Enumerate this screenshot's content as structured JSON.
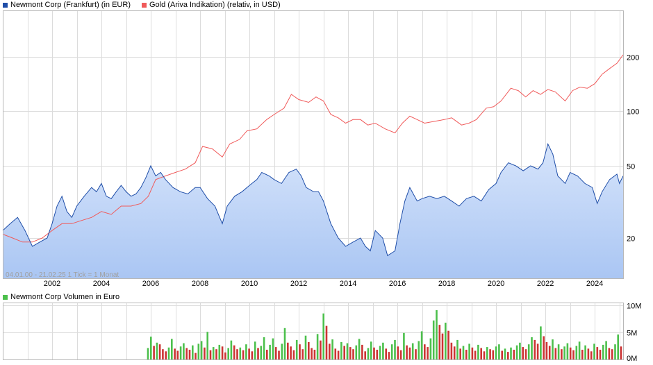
{
  "legend_top": {
    "series1": {
      "label": "Newmont Corp (Frankfurt) (in EUR)",
      "color": "#1f4ea8"
    },
    "series2": {
      "label": "Gold (Ariva Indikation) (relativ, in USD)",
      "color": "#f05a5a"
    }
  },
  "legend_bottom": {
    "label": "Newmont Corp Volumen in Euro",
    "color": "#4cc04c"
  },
  "chart_note": "04.01.00 - 21.02.25   1 Tick = 1 Monat",
  "chart_data": [
    {
      "type": "line",
      "scale": "log",
      "x_tick_labels": [
        "2002",
        "2004",
        "2006",
        "2008",
        "2010",
        "2012",
        "2014",
        "2016",
        "2018",
        "2020",
        "2022",
        "2024"
      ],
      "x_tick_years": [
        2002,
        2004,
        2006,
        2008,
        2010,
        2012,
        2014,
        2016,
        2018,
        2020,
        2022,
        2024
      ],
      "xlim": [
        2000.0,
        2025.15
      ],
      "ylim": [
        12,
        360
      ],
      "y_tick_labels": [
        "20",
        "50",
        "100",
        "200"
      ],
      "y_tick_values": [
        20,
        50,
        100,
        200
      ],
      "grid": true,
      "series": [
        {
          "name": "Newmont Corp (Frankfurt) (in EUR)",
          "color": "#1f4ea8",
          "fill": true,
          "points": [
            [
              2000.0,
              22
            ],
            [
              2000.3,
              24
            ],
            [
              2000.6,
              26
            ],
            [
              2000.9,
              22
            ],
            [
              2001.2,
              18
            ],
            [
              2001.5,
              19
            ],
            [
              2001.8,
              20
            ],
            [
              2002.0,
              24
            ],
            [
              2002.2,
              30
            ],
            [
              2002.4,
              34
            ],
            [
              2002.6,
              28
            ],
            [
              2002.8,
              26
            ],
            [
              2003.0,
              30
            ],
            [
              2003.3,
              34
            ],
            [
              2003.6,
              38
            ],
            [
              2003.8,
              36
            ],
            [
              2004.0,
              40
            ],
            [
              2004.2,
              34
            ],
            [
              2004.4,
              33
            ],
            [
              2004.6,
              36
            ],
            [
              2004.8,
              39
            ],
            [
              2005.0,
              36
            ],
            [
              2005.2,
              34
            ],
            [
              2005.4,
              35
            ],
            [
              2005.6,
              38
            ],
            [
              2005.8,
              43
            ],
            [
              2006.0,
              50
            ],
            [
              2006.2,
              44
            ],
            [
              2006.4,
              46
            ],
            [
              2006.6,
              42
            ],
            [
              2006.9,
              38
            ],
            [
              2007.2,
              36
            ],
            [
              2007.5,
              35
            ],
            [
              2007.8,
              38
            ],
            [
              2008.0,
              38
            ],
            [
              2008.3,
              33
            ],
            [
              2008.6,
              30
            ],
            [
              2008.9,
              24
            ],
            [
              2009.1,
              30
            ],
            [
              2009.4,
              34
            ],
            [
              2009.7,
              36
            ],
            [
              2009.9,
              38
            ],
            [
              2010.1,
              40
            ],
            [
              2010.3,
              42
            ],
            [
              2010.5,
              46
            ],
            [
              2010.8,
              44
            ],
            [
              2011.0,
              42
            ],
            [
              2011.3,
              40
            ],
            [
              2011.6,
              46
            ],
            [
              2011.9,
              48
            ],
            [
              2012.1,
              44
            ],
            [
              2012.3,
              38
            ],
            [
              2012.6,
              36
            ],
            [
              2012.8,
              36
            ],
            [
              2013.0,
              32
            ],
            [
              2013.3,
              24
            ],
            [
              2013.6,
              20
            ],
            [
              2013.9,
              18
            ],
            [
              2014.2,
              19
            ],
            [
              2014.5,
              20
            ],
            [
              2014.7,
              18
            ],
            [
              2014.9,
              17
            ],
            [
              2015.1,
              22
            ],
            [
              2015.4,
              20
            ],
            [
              2015.6,
              16
            ],
            [
              2015.9,
              17
            ],
            [
              2016.1,
              24
            ],
            [
              2016.3,
              32
            ],
            [
              2016.5,
              38
            ],
            [
              2016.8,
              32
            ],
            [
              2017.0,
              33
            ],
            [
              2017.3,
              34
            ],
            [
              2017.6,
              33
            ],
            [
              2017.9,
              34
            ],
            [
              2018.2,
              32
            ],
            [
              2018.5,
              30
            ],
            [
              2018.8,
              33
            ],
            [
              2019.1,
              34
            ],
            [
              2019.4,
              32
            ],
            [
              2019.7,
              37
            ],
            [
              2020.0,
              40
            ],
            [
              2020.2,
              46
            ],
            [
              2020.5,
              52
            ],
            [
              2020.8,
              50
            ],
            [
              2021.1,
              47
            ],
            [
              2021.4,
              50
            ],
            [
              2021.7,
              48
            ],
            [
              2021.9,
              52
            ],
            [
              2022.1,
              66
            ],
            [
              2022.3,
              58
            ],
            [
              2022.5,
              44
            ],
            [
              2022.8,
              40
            ],
            [
              2023.0,
              46
            ],
            [
              2023.3,
              44
            ],
            [
              2023.6,
              40
            ],
            [
              2023.9,
              38
            ],
            [
              2024.1,
              31
            ],
            [
              2024.3,
              36
            ],
            [
              2024.6,
              42
            ],
            [
              2024.9,
              45
            ],
            [
              2025.0,
              40
            ],
            [
              2025.15,
              44
            ]
          ]
        },
        {
          "name": "Gold (Ariva Indikation) (relativ, in USD)",
          "color": "#f05a5a",
          "fill": false,
          "points": [
            [
              2000.0,
              21
            ],
            [
              2000.4,
              20
            ],
            [
              2000.8,
              19
            ],
            [
              2001.2,
              19
            ],
            [
              2001.6,
              20
            ],
            [
              2002.0,
              22
            ],
            [
              2002.4,
              24
            ],
            [
              2002.8,
              24
            ],
            [
              2003.2,
              25
            ],
            [
              2003.6,
              26
            ],
            [
              2004.0,
              28
            ],
            [
              2004.4,
              27
            ],
            [
              2004.8,
              30
            ],
            [
              2005.2,
              30
            ],
            [
              2005.6,
              31
            ],
            [
              2005.9,
              34
            ],
            [
              2006.2,
              42
            ],
            [
              2006.6,
              44
            ],
            [
              2007.0,
              46
            ],
            [
              2007.4,
              48
            ],
            [
              2007.8,
              52
            ],
            [
              2008.1,
              64
            ],
            [
              2008.5,
              62
            ],
            [
              2008.9,
              56
            ],
            [
              2009.2,
              66
            ],
            [
              2009.6,
              70
            ],
            [
              2009.9,
              78
            ],
            [
              2010.3,
              80
            ],
            [
              2010.7,
              90
            ],
            [
              2011.0,
              96
            ],
            [
              2011.4,
              104
            ],
            [
              2011.7,
              124
            ],
            [
              2012.0,
              116
            ],
            [
              2012.4,
              112
            ],
            [
              2012.7,
              120
            ],
            [
              2013.0,
              114
            ],
            [
              2013.3,
              96
            ],
            [
              2013.6,
              92
            ],
            [
              2013.9,
              86
            ],
            [
              2014.2,
              90
            ],
            [
              2014.5,
              90
            ],
            [
              2014.8,
              84
            ],
            [
              2015.1,
              86
            ],
            [
              2015.5,
              80
            ],
            [
              2015.9,
              76
            ],
            [
              2016.2,
              86
            ],
            [
              2016.5,
              94
            ],
            [
              2016.8,
              90
            ],
            [
              2017.1,
              86
            ],
            [
              2017.5,
              88
            ],
            [
              2017.9,
              90
            ],
            [
              2018.2,
              92
            ],
            [
              2018.6,
              84
            ],
            [
              2018.9,
              86
            ],
            [
              2019.2,
              90
            ],
            [
              2019.6,
              104
            ],
            [
              2019.9,
              106
            ],
            [
              2020.2,
              114
            ],
            [
              2020.6,
              134
            ],
            [
              2020.9,
              130
            ],
            [
              2021.2,
              120
            ],
            [
              2021.5,
              130
            ],
            [
              2021.8,
              124
            ],
            [
              2022.1,
              132
            ],
            [
              2022.4,
              128
            ],
            [
              2022.8,
              114
            ],
            [
              2023.1,
              130
            ],
            [
              2023.4,
              136
            ],
            [
              2023.7,
              134
            ],
            [
              2024.0,
              142
            ],
            [
              2024.3,
              160
            ],
            [
              2024.6,
              172
            ],
            [
              2024.9,
              184
            ],
            [
              2025.15,
              205
            ]
          ]
        }
      ]
    },
    {
      "type": "bar",
      "title": "Newmont Corp Volumen in Euro",
      "unit": "M",
      "ylim": [
        0,
        10
      ],
      "y_tick_labels": [
        "0M",
        "5M",
        "10M"
      ],
      "y_tick_values": [
        0,
        5,
        10
      ],
      "x_start": 2005.85,
      "x_end": 2025.15,
      "up_color": "#4cc04c",
      "down_color": "#cc3333",
      "values": [
        2.1,
        4.2,
        2.5,
        3.1,
        2.8,
        1.9,
        1.5,
        2.2,
        3.8,
        2.0,
        1.6,
        2.4,
        3.0,
        2.1,
        1.8,
        2.6,
        1.2,
        2.9,
        3.4,
        2.2,
        5.1,
        1.7,
        2.3,
        1.9,
        2.7,
        2.4,
        1.3,
        2.1,
        3.5,
        2.6,
        1.9,
        2.2,
        1.7,
        2.8,
        2.0,
        1.5,
        3.3,
        2.1,
        2.5,
        4.1,
        1.8,
        2.7,
        3.9,
        2.3,
        1.6,
        2.9,
        5.8,
        3.1,
        2.4,
        1.7,
        3.6,
        2.8,
        1.9,
        4.4,
        3.2,
        2.1,
        1.8,
        4.7,
        3.5,
        8.5,
        6.2,
        2.9,
        3.7,
        2.0,
        1.6,
        3.2,
        2.5,
        3.0,
        2.3,
        1.9,
        2.6,
        3.8,
        2.7,
        1.5,
        2.1,
        3.3,
        2.2,
        1.8,
        2.5,
        3.1,
        2.0,
        1.4,
        2.8,
        3.6,
        2.4,
        1.7,
        4.9,
        2.6,
        2.2,
        3.0,
        1.9,
        3.4,
        5.2,
        2.8,
        2.3,
        3.9,
        7.2,
        9.1,
        6.4,
        4.8,
        6.8,
        5.3,
        3.1,
        2.4,
        3.6,
        2.0,
        2.5,
        1.8,
        2.9,
        2.2,
        1.6,
        2.7,
        2.1,
        1.5,
        2.3,
        1.9,
        1.7,
        2.4,
        2.8,
        1.6,
        2.0,
        1.4,
        2.2,
        1.8,
        2.6,
        3.1,
        2.3,
        1.9,
        2.8,
        4.1,
        3.6,
        2.9,
        6.1,
        4.3,
        3.2,
        2.5,
        3.7,
        2.1,
        2.8,
        1.9,
        2.4,
        3.0,
        2.2,
        1.7,
        2.5,
        3.3,
        1.8,
        2.6,
        2.0,
        1.5,
        2.9,
        2.3,
        1.8,
        2.7,
        3.4,
        2.1,
        1.9,
        2.8,
        4.6,
        2.4
      ]
    }
  ]
}
